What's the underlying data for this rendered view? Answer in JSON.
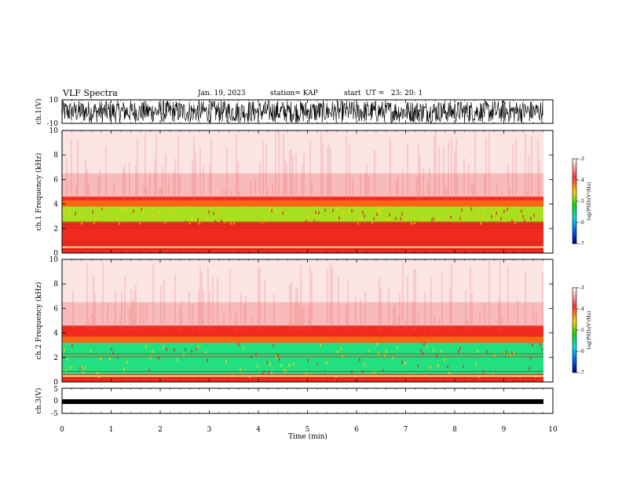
{
  "header": {
    "title": "VLF Spectra",
    "date": "Jan. 19, 2023",
    "station": "station= KAP",
    "start": "start  UT =   23: 20: 1"
  },
  "chart_data": [
    {
      "type": "line",
      "panel": "ch1-waveform",
      "ylabel": "ch.1(V)",
      "ylim": [
        -10,
        10
      ],
      "yticks": [
        "10",
        "-10"
      ],
      "xlim": [
        0,
        10
      ]
    },
    {
      "type": "heatmap",
      "panel": "ch1-spectrogram",
      "ylabel": "ch.1 Frequency (kHz)",
      "ylim": [
        0,
        10
      ],
      "yticks": [
        "0",
        "2",
        "4",
        "6",
        "8",
        "10"
      ],
      "xlim": [
        0,
        10
      ],
      "description_bands_khz": {
        "low_power_below": 4,
        "green_band": [
          2.5,
          3.8
        ]
      },
      "colorbar": {
        "label": "log(PSD)(V²/Hz)",
        "range": [
          -7,
          -3
        ],
        "ticks": [
          "-3",
          "-4",
          "-5",
          "-6",
          "-7"
        ]
      }
    },
    {
      "type": "heatmap",
      "panel": "ch2-spectrogram",
      "ylabel": "ch.2 Frequency (kHz)",
      "ylim": [
        0,
        10
      ],
      "yticks": [
        "0",
        "2",
        "4",
        "6",
        "8",
        "10"
      ],
      "xlim": [
        0,
        10
      ],
      "description_bands_khz": {
        "low_power_below": 3.5,
        "green_band": [
          0.5,
          3.2
        ]
      },
      "colorbar": {
        "label": "log(PSD)(V²/Hz)",
        "range": [
          -7,
          -3
        ],
        "ticks": [
          "-3",
          "-4",
          "-5",
          "-6",
          "-7"
        ]
      }
    },
    {
      "type": "line",
      "panel": "ch3-waveform",
      "ylabel": "ch.3(V)",
      "ylim": [
        -5,
        5
      ],
      "yticks": [
        "5",
        "0",
        "-5"
      ],
      "xlim": [
        0,
        10
      ],
      "xlabel": "Time (min)",
      "xticks": [
        "0",
        "1",
        "2",
        "3",
        "4",
        "5",
        "6",
        "7",
        "8",
        "9",
        "10"
      ]
    }
  ]
}
